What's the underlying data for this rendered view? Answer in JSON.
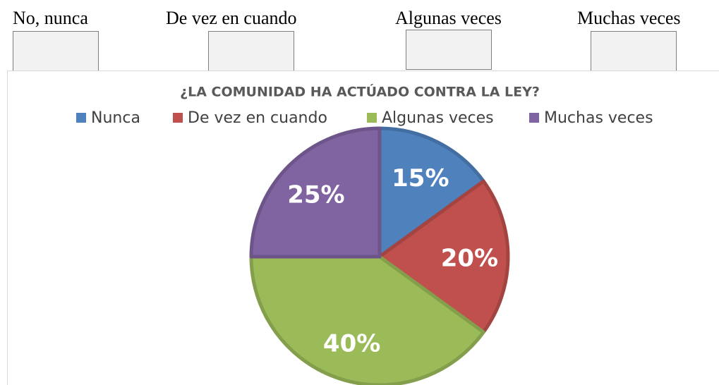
{
  "options": [
    "No, nunca",
    "De vez en cuando",
    "Algunas veces",
    "Muchas veces"
  ],
  "chart_data": {
    "type": "pie",
    "title": "¿LA COMUNIDAD HA ACTÚADO CONTRA LA LEY?",
    "categories": [
      "Nunca",
      "De vez en cuando",
      "Algunas veces",
      "Muchas veces"
    ],
    "values": [
      15,
      20,
      40,
      25
    ],
    "value_labels": [
      "15%",
      "20%",
      "40%",
      "25%"
    ],
    "colors": [
      "#4f81bd",
      "#c0504d",
      "#9bbb59",
      "#8064a2"
    ],
    "legend": "top"
  }
}
